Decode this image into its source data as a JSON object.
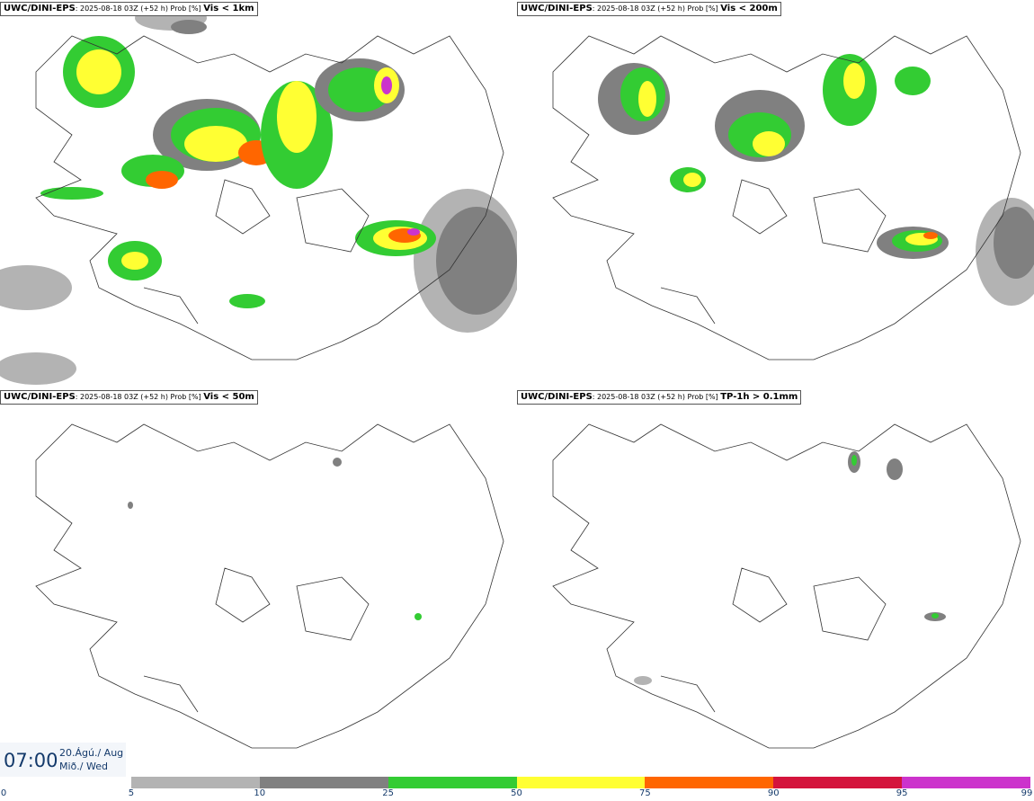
{
  "panels": [
    {
      "model": "UWC/DINI-EPS",
      "meta": ": 2025-08-18 03Z (+52 h) Prob [%] ",
      "var": "Vis < 1km",
      "intensity": "high"
    },
    {
      "model": "UWC/DINI-EPS",
      "meta": ": 2025-08-18 03Z (+52 h) Prob [%] ",
      "var": "Vis < 200m",
      "intensity": "medium"
    },
    {
      "model": "UWC/DINI-EPS",
      "meta": ": 2025-08-18 03Z (+52 h) Prob [%] ",
      "var": "Vis < 50m",
      "intensity": "low"
    },
    {
      "model": "UWC/DINI-EPS",
      "meta": ": 2025-08-18 03Z (+52 h) Prob [%] ",
      "var": "TP-1h > 0.1mm",
      "intensity": "low"
    }
  ],
  "time": {
    "clock": "07:00",
    "date_line1": "20.Ágú./ Aug",
    "date_line2": "Mið./ Wed"
  },
  "legend": {
    "ticks": [
      "0",
      "5",
      "10",
      "25",
      "50",
      "75",
      "90",
      "95",
      "99"
    ],
    "colors": [
      "#ffffff",
      "#b3b3b3",
      "#808080",
      "#33cc33",
      "#ffff33",
      "#ff6600",
      "#d4143c",
      "#cc33cc",
      "#f5c0f5"
    ]
  }
}
